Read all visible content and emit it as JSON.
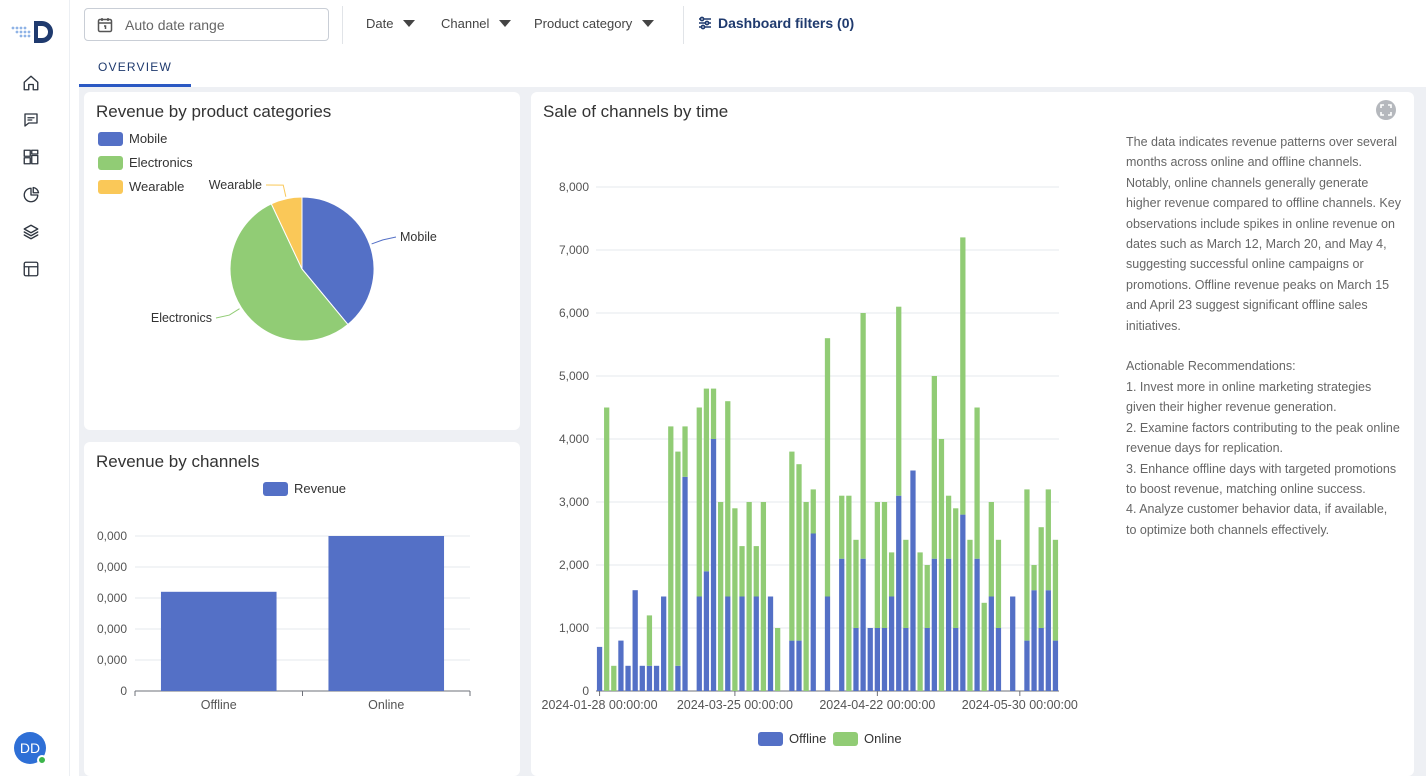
{
  "toolbar": {
    "date_range_placeholder": "Auto date range",
    "filters": [
      "Date",
      "Channel",
      "Product category"
    ],
    "dashboard_filters_label": "Dashboard filters (0)"
  },
  "tabs": [
    {
      "label": "OVERVIEW"
    }
  ],
  "user": {
    "initials": "DD"
  },
  "colors": {
    "mobile": "#5470c6",
    "electronics": "#91cc75",
    "wearable": "#fac858",
    "accent": "#1f3a6e"
  },
  "pie_card": {
    "title": "Revenue by product categories"
  },
  "channels_card": {
    "title": "Revenue by channels"
  },
  "time_card": {
    "title": "Sale of channels by time",
    "description": "The data indicates revenue patterns over several months across online and offline channels. Notably, online channels generally generate higher revenue compared to offline channels. Key observations include spikes in online revenue on dates such as March 12, March 20, and May 4, suggesting successful online campaigns or promotions. Offline revenue peaks on March 15 and April 23 suggest significant offline sales initiatives.\n\nActionable Recommendations:\n1. Invest more in online marketing strategies given their higher revenue generation.\n2. Examine factors contributing to the peak online revenue days for replication.\n3. Enhance offline days with targeted promotions to boost revenue, matching online success.\n4. Analyze customer behavior data, if available, to optimize both channels effectively."
  },
  "chart_data": [
    {
      "type": "pie",
      "title": "Revenue by product categories",
      "legend": [
        "Mobile",
        "Electronics",
        "Wearable"
      ],
      "slices": [
        {
          "label": "Mobile",
          "value": 39,
          "color": "#5470c6"
        },
        {
          "label": "Electronics",
          "value": 54,
          "color": "#91cc75"
        },
        {
          "label": "Wearable",
          "value": 7,
          "color": "#fac858"
        }
      ]
    },
    {
      "type": "bar",
      "title": "Revenue by channels",
      "legend": [
        "Revenue"
      ],
      "categories": [
        "Offline",
        "Online"
      ],
      "values": [
        3.2,
        5.0
      ],
      "ylim": [
        0,
        5
      ],
      "yticks": [
        "0",
        "0,000",
        "0,000",
        "0,000",
        "0,000",
        "0,000"
      ],
      "color": "#5470c6"
    },
    {
      "type": "bar",
      "stacked": true,
      "title": "Sale of channels by time",
      "ylim": [
        0,
        8000
      ],
      "yticks": [
        "0",
        "1,000",
        "2,000",
        "3,000",
        "4,000",
        "5,000",
        "6,000",
        "7,000",
        "8,000"
      ],
      "xticks": [
        "2024-01-28 00:00:00",
        "2024-03-25 00:00:00",
        "2024-04-22 00:00:00",
        "2024-05-30 00:00:00"
      ],
      "xtick_index": [
        0,
        19,
        39,
        59
      ],
      "legend": [
        "Offline",
        "Online"
      ],
      "series": [
        {
          "name": "Offline",
          "color": "#5470c6",
          "values": [
            700,
            0,
            0,
            800,
            400,
            1600,
            400,
            400,
            400,
            1500,
            0,
            400,
            3400,
            0,
            1500,
            1900,
            4000,
            0,
            1500,
            0,
            1500,
            0,
            1500,
            0,
            1500,
            0,
            0,
            800,
            800,
            0,
            2500,
            0,
            1500,
            0,
            2100,
            0,
            1000,
            2100,
            1000,
            1000,
            1000,
            1500,
            3100,
            1000,
            3500,
            0,
            1000,
            2100,
            0,
            2100,
            1000,
            2800,
            0,
            2100,
            0,
            1500,
            1000,
            0,
            1500,
            0,
            800,
            1600,
            1000,
            1600,
            800
          ]
        },
        {
          "name": "Online",
          "color": "#91cc75",
          "values": [
            0,
            4500,
            400,
            0,
            0,
            0,
            0,
            800,
            0,
            0,
            4200,
            3400,
            800,
            0,
            3000,
            2900,
            800,
            3000,
            3100,
            2900,
            800,
            3000,
            800,
            3000,
            0,
            1000,
            0,
            3000,
            2800,
            3000,
            700,
            0,
            4100,
            0,
            1000,
            3100,
            1400,
            3900,
            0,
            2000,
            2000,
            700,
            3000,
            1400,
            0,
            2200,
            1000,
            2900,
            4000,
            1000,
            1900,
            4400,
            2400,
            2400,
            1400,
            1500,
            1400,
            0,
            0,
            0,
            2400,
            400,
            1600,
            1600,
            1600
          ]
        }
      ]
    }
  ]
}
